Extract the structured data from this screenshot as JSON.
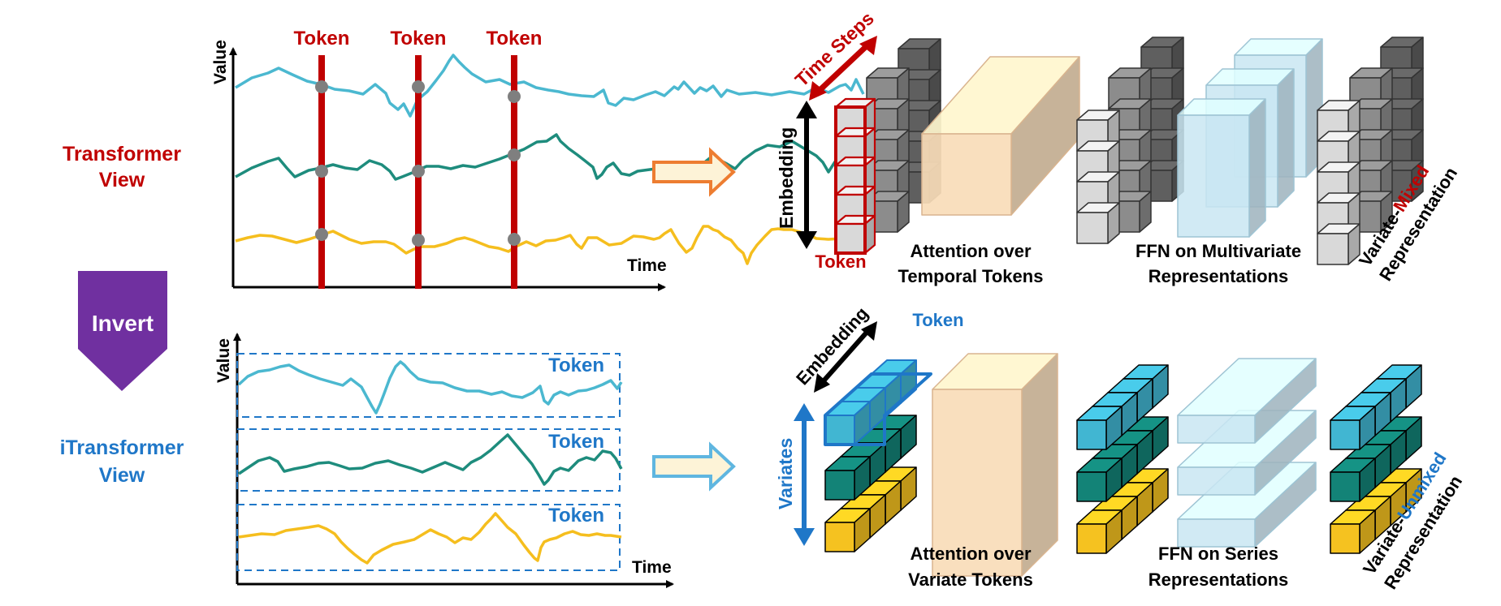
{
  "colors": {
    "red": "#c00000",
    "blue": "#1f77c8",
    "purple": "#7030a0",
    "teal_line": "#4bb8d0",
    "green_line": "#1e8c7d",
    "yellow_line": "#f5be1e",
    "grey_dot": "#7f7f7f",
    "orange_arrow": "#ed7d31",
    "blue_arrow": "#5fb6e0",
    "arrow_fill": "#fdf3d7",
    "peach_box": "#f9dcb8",
    "pale_blue_box": "#c9e6f2"
  },
  "left": {
    "transformer_view": [
      "Transformer",
      "View"
    ],
    "itransformer_view": [
      "iTransformer",
      "View"
    ],
    "invert": "Invert"
  },
  "top_plot": {
    "ylabel": "Value",
    "xlabel": "Time",
    "token_labels": [
      "Token",
      "Token",
      "Token"
    ]
  },
  "bottom_plot": {
    "ylabel": "Value",
    "xlabel": "Time",
    "token_labels": [
      "Token",
      "Token",
      "Token"
    ]
  },
  "top_arch": {
    "time_steps": "Time Steps",
    "embedding": "Embedding",
    "token": "Token",
    "attention": [
      "Attention over",
      "Temporal Tokens"
    ],
    "ffn": [
      "FFN on Multivariate",
      "Representations"
    ],
    "representation_prefix": "Variate-",
    "representation_highlight": "Mixed",
    "representation_suffix": "Representation"
  },
  "bottom_arch": {
    "embedding": "Embedding",
    "token": "Token",
    "variates": "Variates",
    "attention": [
      "Attention over",
      "Variate Tokens"
    ],
    "ffn": [
      "FFN on Series",
      "Representations"
    ],
    "representation_prefix": "Variate-",
    "representation_highlight": "Unmixed",
    "representation_suffix": "Representation"
  }
}
